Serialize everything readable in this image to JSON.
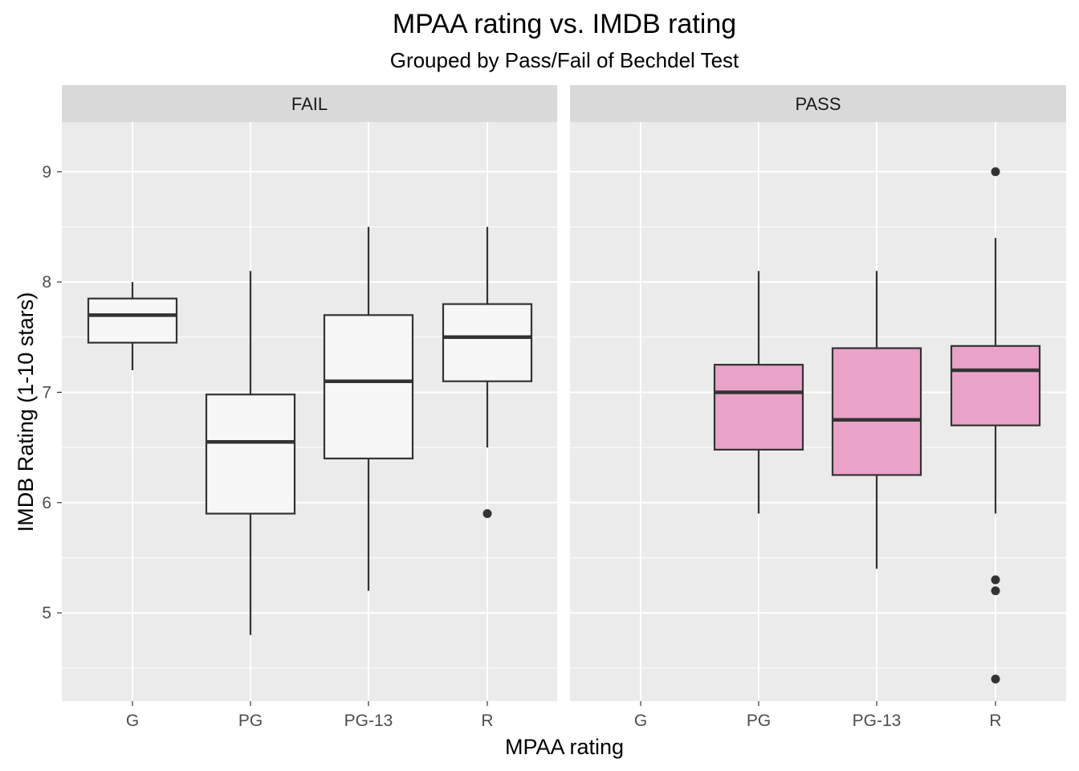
{
  "chart_data": {
    "type": "boxplot",
    "title": "MPAA rating vs. IMDB rating",
    "subtitle": "Grouped by Pass/Fail of Bechdel Test",
    "xlabel": "MPAA rating",
    "ylabel": "IMDB Rating (1-10 stars)",
    "categories": [
      "G",
      "PG",
      "PG-13",
      "R"
    ],
    "ylim": [
      4.2,
      9.45
    ],
    "y_ticks": [
      5,
      6,
      7,
      8,
      9
    ],
    "y_minor_ticks": [
      4.5,
      5.5,
      6.5,
      7.5,
      8.5
    ],
    "grid": true,
    "panel_background": "#ebebeb",
    "strip_background": "#d9d9d9",
    "grid_color": "#ffffff",
    "box_line_color": "#333333",
    "facets": [
      {
        "label": "FAIL",
        "fill": "#f7f7f7",
        "boxes": [
          {
            "category": "G",
            "whisker_low": 7.2,
            "q1": 7.45,
            "median": 7.7,
            "q3": 7.85,
            "whisker_high": 8.0,
            "outliers": []
          },
          {
            "category": "PG",
            "whisker_low": 4.8,
            "q1": 5.9,
            "median": 6.55,
            "q3": 6.98,
            "whisker_high": 8.1,
            "outliers": []
          },
          {
            "category": "PG-13",
            "whisker_low": 5.2,
            "q1": 6.4,
            "median": 7.1,
            "q3": 7.7,
            "whisker_high": 8.5,
            "outliers": []
          },
          {
            "category": "R",
            "whisker_low": 6.5,
            "q1": 7.1,
            "median": 7.5,
            "q3": 7.8,
            "whisker_high": 8.5,
            "outliers": [
              5.9
            ]
          }
        ]
      },
      {
        "label": "PASS",
        "fill": "#e9a3c9",
        "boxes": [
          {
            "category": "PG",
            "whisker_low": 5.9,
            "q1": 6.48,
            "median": 7.0,
            "q3": 7.25,
            "whisker_high": 8.1,
            "outliers": []
          },
          {
            "category": "PG-13",
            "whisker_low": 5.4,
            "q1": 6.25,
            "median": 6.75,
            "q3": 7.4,
            "whisker_high": 8.1,
            "outliers": []
          },
          {
            "category": "R",
            "whisker_low": 5.9,
            "q1": 6.7,
            "median": 7.2,
            "q3": 7.42,
            "whisker_high": 8.4,
            "outliers": [
              9.0,
              5.3,
              5.2,
              4.4
            ]
          }
        ]
      }
    ]
  }
}
